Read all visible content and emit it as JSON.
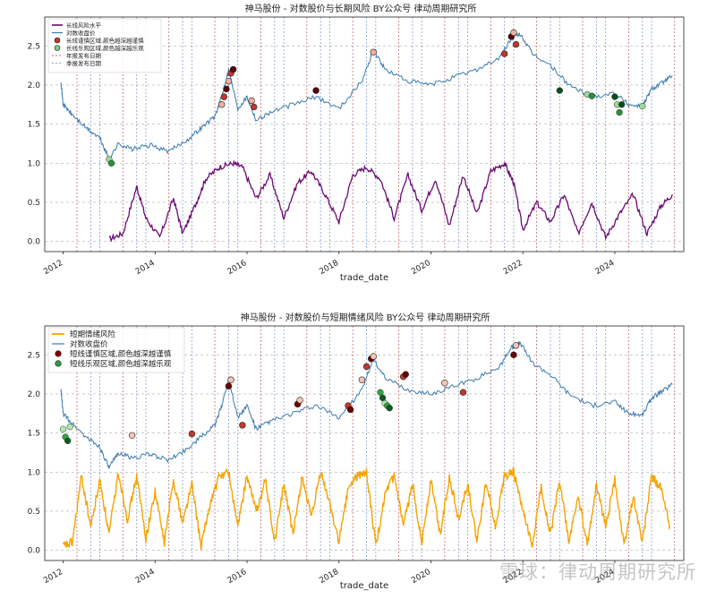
{
  "chart_data": [
    {
      "type": "line",
      "title": "神马股份 - 对数股价与长期风险 BY公众号 律动周期研究所",
      "xlabel": "trade_date",
      "ylabel": "",
      "xlim": [
        2011.6,
        2025.5
      ],
      "ylim": [
        -0.13,
        2.87
      ],
      "yticks": [
        "0.0",
        "0.5",
        "1.0",
        "1.5",
        "2.0",
        "2.5"
      ],
      "xticks": [
        "2012",
        "2014",
        "2016",
        "2018",
        "2020",
        "2022",
        "2024"
      ],
      "legend": [
        "长线风险水平",
        "对数收盘价",
        "长线谨慎区域,颜色越深越谨慎",
        "长线乐观区域,颜色越深越乐观",
        "年报发布日期",
        "季报发布日期"
      ],
      "price": {
        "name": "对数收盘价",
        "color": "#3a7ab0",
        "x": [
          2011.95,
          2012.0,
          2012.2,
          2012.5,
          2012.8,
          2013.0,
          2013.2,
          2013.5,
          2013.9,
          2014.3,
          2014.7,
          2015.0,
          2015.3,
          2015.45,
          2015.6,
          2015.8,
          2016.0,
          2016.2,
          2016.5,
          2017.0,
          2017.5,
          2018.0,
          2018.5,
          2018.75,
          2019.0,
          2019.5,
          2020.0,
          2020.5,
          2021.0,
          2021.5,
          2021.75,
          2021.95,
          2022.2,
          2022.6,
          2023.0,
          2023.5,
          2024.0,
          2024.3,
          2024.6,
          2024.8,
          2025.0,
          2025.25
        ],
        "y": [
          2.06,
          1.75,
          1.62,
          1.45,
          1.32,
          1.05,
          1.25,
          1.18,
          1.23,
          1.15,
          1.3,
          1.45,
          1.6,
          1.85,
          2.2,
          1.7,
          1.85,
          1.55,
          1.65,
          1.75,
          1.85,
          1.7,
          2.05,
          2.45,
          2.2,
          2.05,
          2.0,
          2.1,
          2.2,
          2.35,
          2.6,
          2.65,
          2.4,
          2.25,
          2.0,
          1.85,
          1.9,
          1.75,
          1.73,
          1.95,
          2.02,
          2.12
        ]
      },
      "risk": {
        "name": "长线风险水平",
        "color": "#6b0a74",
        "x": [
          2013.0,
          2013.3,
          2013.6,
          2013.8,
          2014.1,
          2014.4,
          2014.6,
          2014.9,
          2015.1,
          2015.4,
          2015.7,
          2015.9,
          2016.2,
          2016.5,
          2016.8,
          2017.1,
          2017.4,
          2017.7,
          2018.0,
          2018.3,
          2018.6,
          2018.9,
          2019.2,
          2019.5,
          2019.8,
          2020.1,
          2020.4,
          2020.7,
          2021.0,
          2021.3,
          2021.6,
          2021.8,
          2022.0,
          2022.3,
          2022.6,
          2022.9,
          2023.2,
          2023.5,
          2023.8,
          2024.1,
          2024.4,
          2024.7,
          2025.0,
          2025.25
        ],
        "y": [
          0.03,
          0.1,
          0.7,
          0.3,
          0.05,
          0.55,
          0.1,
          0.5,
          0.8,
          0.95,
          1.0,
          0.95,
          0.55,
          0.85,
          0.3,
          0.75,
          0.9,
          0.6,
          0.25,
          0.85,
          0.95,
          0.8,
          0.3,
          0.85,
          0.4,
          0.8,
          0.2,
          0.85,
          0.35,
          0.9,
          1.0,
          0.75,
          0.15,
          0.5,
          0.25,
          0.6,
          0.1,
          0.5,
          0.05,
          0.35,
          0.6,
          0.1,
          0.45,
          0.6
        ]
      },
      "caution_points": [
        [
          2015.45,
          1.75
        ],
        [
          2015.5,
          1.85
        ],
        [
          2015.55,
          1.95
        ],
        [
          2015.6,
          2.05
        ],
        [
          2015.65,
          2.15
        ],
        [
          2015.7,
          2.2
        ],
        [
          2016.1,
          1.8
        ],
        [
          2016.15,
          1.72
        ],
        [
          2017.5,
          1.93
        ],
        [
          2018.75,
          2.42
        ],
        [
          2021.6,
          2.4
        ],
        [
          2021.75,
          2.62
        ],
        [
          2021.8,
          2.67
        ],
        [
          2021.85,
          2.52
        ]
      ],
      "optimism_points": [
        [
          2013.0,
          1.05
        ],
        [
          2013.05,
          1.0
        ],
        [
          2022.8,
          1.93
        ],
        [
          2023.4,
          1.88
        ],
        [
          2023.5,
          1.86
        ],
        [
          2024.0,
          1.85
        ],
        [
          2024.05,
          1.75
        ],
        [
          2024.1,
          1.65
        ],
        [
          2024.15,
          1.75
        ],
        [
          2024.6,
          1.73
        ]
      ],
      "annual_report_dates": [
        2012.3,
        2013.3,
        2014.3,
        2015.3,
        2016.3,
        2017.3,
        2018.3,
        2019.3,
        2020.3,
        2021.3,
        2022.3,
        2023.3,
        2024.3,
        2025.3
      ],
      "quarter_report_dates": [
        2012.6,
        2012.8,
        2013.6,
        2013.8,
        2014.6,
        2014.8,
        2015.6,
        2015.8,
        2016.6,
        2016.8,
        2017.6,
        2017.8,
        2018.6,
        2018.8,
        2019.6,
        2019.8,
        2020.6,
        2020.8,
        2021.6,
        2021.8,
        2022.6,
        2022.8,
        2023.6,
        2023.8,
        2024.6,
        2024.8
      ]
    },
    {
      "type": "line",
      "title": "神马股份 - 对数股价与短期情绪风险 BY公众号 律动周期研究所",
      "xlabel": "trade_date",
      "ylabel": "",
      "xlim": [
        2011.6,
        2025.5
      ],
      "ylim": [
        -0.13,
        2.87
      ],
      "yticks": [
        "0.0",
        "0.5",
        "1.0",
        "1.5",
        "2.0",
        "2.5"
      ],
      "xticks": [
        "2012",
        "2014",
        "2016",
        "2018",
        "2020",
        "2022",
        "2024"
      ],
      "legend": [
        "短期情绪风险",
        "对数收盘价",
        "短线谨慎区域,颜色越深越谨慎",
        "短线乐观区域,颜色越深越乐观"
      ],
      "price": {
        "name": "对数收盘价",
        "color": "#3a7ab0",
        "x": [
          2011.95,
          2012.0,
          2012.2,
          2012.5,
          2012.8,
          2013.0,
          2013.2,
          2013.5,
          2013.9,
          2014.3,
          2014.7,
          2015.0,
          2015.3,
          2015.45,
          2015.6,
          2015.8,
          2016.0,
          2016.2,
          2016.5,
          2017.0,
          2017.5,
          2018.0,
          2018.5,
          2018.75,
          2019.0,
          2019.5,
          2020.0,
          2020.5,
          2021.0,
          2021.5,
          2021.75,
          2021.95,
          2022.2,
          2022.6,
          2023.0,
          2023.5,
          2024.0,
          2024.3,
          2024.6,
          2024.8,
          2025.0,
          2025.25
        ],
        "y": [
          2.06,
          1.75,
          1.62,
          1.45,
          1.32,
          1.05,
          1.25,
          1.18,
          1.23,
          1.15,
          1.3,
          1.45,
          1.6,
          1.85,
          2.2,
          1.7,
          1.85,
          1.55,
          1.65,
          1.75,
          1.85,
          1.7,
          2.05,
          2.45,
          2.2,
          2.05,
          2.0,
          2.1,
          2.2,
          2.35,
          2.6,
          2.65,
          2.4,
          2.25,
          2.0,
          1.85,
          1.9,
          1.75,
          1.73,
          1.95,
          2.02,
          2.12
        ]
      },
      "risk": {
        "name": "短期情绪风险",
        "color": "#f5a300",
        "x": [
          2012.0,
          2012.2,
          2012.4,
          2012.6,
          2012.8,
          2013.0,
          2013.2,
          2013.4,
          2013.6,
          2013.8,
          2014.0,
          2014.2,
          2014.4,
          2014.6,
          2014.8,
          2015.0,
          2015.2,
          2015.4,
          2015.6,
          2015.8,
          2016.0,
          2016.2,
          2016.4,
          2016.6,
          2016.8,
          2017.0,
          2017.2,
          2017.4,
          2017.6,
          2017.8,
          2018.0,
          2018.2,
          2018.4,
          2018.6,
          2018.8,
          2019.0,
          2019.2,
          2019.4,
          2019.6,
          2019.8,
          2020.0,
          2020.2,
          2020.4,
          2020.6,
          2020.8,
          2021.0,
          2021.2,
          2021.4,
          2021.6,
          2021.8,
          2022.0,
          2022.2,
          2022.4,
          2022.6,
          2022.8,
          2023.0,
          2023.2,
          2023.4,
          2023.6,
          2023.8,
          2024.0,
          2024.2,
          2024.4,
          2024.6,
          2024.8,
          2025.0,
          2025.2
        ],
        "y": [
          0.05,
          0.1,
          0.95,
          0.3,
          0.9,
          0.2,
          1.0,
          0.4,
          0.95,
          0.15,
          0.75,
          0.1,
          0.9,
          0.35,
          0.85,
          0.05,
          0.6,
          0.95,
          1.0,
          0.3,
          0.95,
          0.5,
          0.9,
          0.1,
          0.85,
          0.2,
          0.95,
          0.4,
          1.0,
          0.6,
          0.1,
          0.8,
          0.95,
          1.0,
          0.05,
          0.7,
          0.95,
          0.3,
          0.85,
          0.1,
          0.9,
          0.2,
          0.95,
          0.4,
          0.85,
          0.1,
          0.9,
          0.3,
          0.95,
          1.0,
          0.5,
          0.05,
          0.8,
          0.2,
          0.9,
          0.1,
          0.7,
          0.05,
          0.85,
          0.3,
          0.9,
          0.05,
          0.7,
          0.1,
          0.95,
          0.8,
          0.3
        ]
      },
      "caution_points": [
        [
          2013.5,
          1.47
        ],
        [
          2014.8,
          1.49
        ],
        [
          2015.6,
          2.1
        ],
        [
          2015.65,
          2.18
        ],
        [
          2015.9,
          1.6
        ],
        [
          2017.1,
          1.87
        ],
        [
          2017.15,
          1.92
        ],
        [
          2018.2,
          1.85
        ],
        [
          2018.25,
          1.8
        ],
        [
          2018.5,
          2.18
        ],
        [
          2018.6,
          2.35
        ],
        [
          2018.7,
          2.45
        ],
        [
          2018.75,
          2.48
        ],
        [
          2019.4,
          2.22
        ],
        [
          2019.45,
          2.25
        ],
        [
          2020.3,
          2.14
        ],
        [
          2020.7,
          2.02
        ],
        [
          2021.8,
          2.5
        ],
        [
          2021.85,
          2.62
        ]
      ],
      "optimism_points": [
        [
          2012.0,
          1.55
        ],
        [
          2012.05,
          1.45
        ],
        [
          2012.1,
          1.4
        ],
        [
          2012.15,
          1.58
        ],
        [
          2018.9,
          2.02
        ],
        [
          2018.95,
          1.95
        ],
        [
          2019.0,
          1.88
        ],
        [
          2019.05,
          1.85
        ],
        [
          2019.1,
          1.82
        ]
      ],
      "annual_report_dates": [
        2012.3,
        2013.3,
        2014.3,
        2015.3,
        2016.3,
        2017.3,
        2018.3,
        2019.3,
        2020.3,
        2021.3,
        2022.3,
        2023.3,
        2024.3,
        2025.3
      ],
      "quarter_report_dates": [
        2012.6,
        2012.8,
        2013.6,
        2013.8,
        2014.6,
        2014.8,
        2015.6,
        2015.8,
        2016.6,
        2016.8,
        2017.6,
        2017.8,
        2018.6,
        2018.8,
        2019.6,
        2019.8,
        2020.6,
        2020.8,
        2021.6,
        2021.8,
        2022.6,
        2022.8,
        2023.6,
        2023.8,
        2024.6,
        2024.8
      ]
    }
  ],
  "watermark": "雪球：律动周期研究所"
}
